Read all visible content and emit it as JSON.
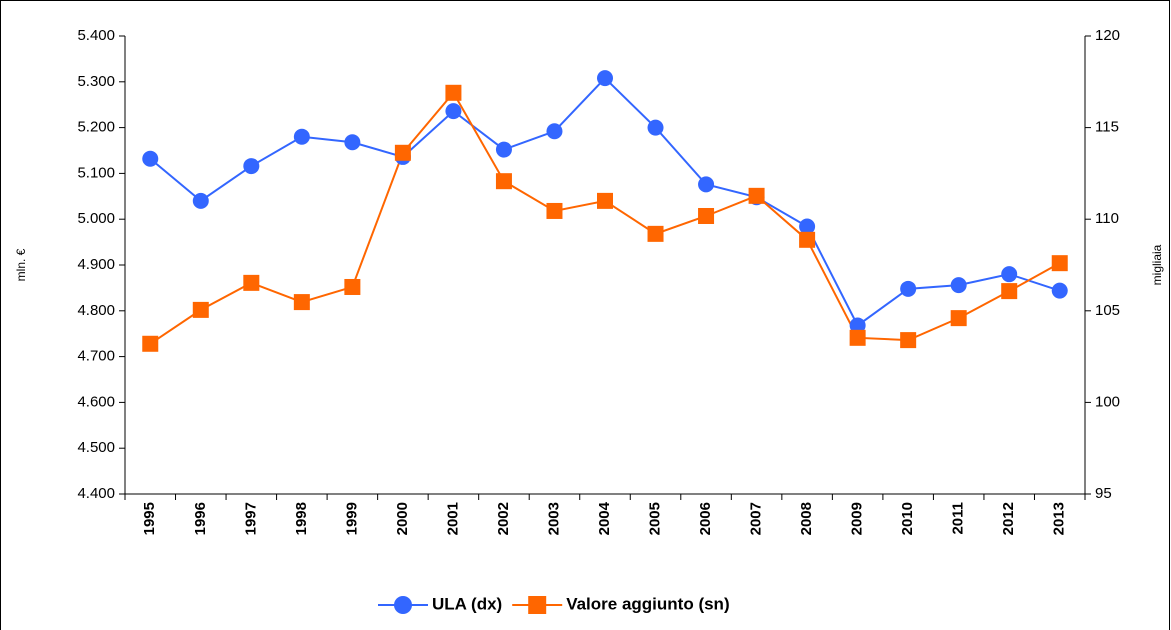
{
  "chart_data": {
    "type": "line",
    "categories": [
      "1995",
      "1996",
      "1997",
      "1998",
      "1999",
      "2000",
      "2001",
      "2002",
      "2003",
      "2004",
      "2005",
      "2006",
      "2007",
      "2008",
      "2009",
      "2010",
      "2011",
      "2012",
      "2013"
    ],
    "series": [
      {
        "name": "ULA (dx)",
        "color": "#3366ff",
        "axis": "y2",
        "marker": "circle",
        "values": [
          113.3,
          111.0,
          112.9,
          114.5,
          114.2,
          113.4,
          115.9,
          113.8,
          114.8,
          117.7,
          115.0,
          111.9,
          111.2,
          109.6,
          104.2,
          106.2,
          106.4,
          107.0,
          106.1
        ]
      },
      {
        "name": "Valore aggiunto (sn)",
        "color": "#ff6600",
        "axis": "y",
        "marker": "square",
        "values": [
          4728,
          4802,
          4861,
          4819,
          4852,
          5145,
          5276,
          5083,
          5018,
          5040,
          4968,
          5007,
          5051,
          4955,
          4741,
          4736,
          4784,
          4843,
          4904
        ]
      }
    ],
    "ylabel": "mln. €",
    "y2label": "migliaia",
    "ylim": [
      4400,
      5400
    ],
    "yticks": [
      {
        "value": 4400,
        "label": "4.400"
      },
      {
        "value": 4500,
        "label": "4.500"
      },
      {
        "value": 4600,
        "label": "4.600"
      },
      {
        "value": 4700,
        "label": "4.700"
      },
      {
        "value": 4800,
        "label": "4.800"
      },
      {
        "value": 4900,
        "label": "4.900"
      },
      {
        "value": 5000,
        "label": "5.000"
      },
      {
        "value": 5100,
        "label": "5.100"
      },
      {
        "value": 5200,
        "label": "5.200"
      },
      {
        "value": 5300,
        "label": "5.300"
      },
      {
        "value": 5400,
        "label": "5.400"
      }
    ],
    "y2lim": [
      95,
      120
    ],
    "y2ticks": [
      95,
      100,
      105,
      110,
      115,
      120
    ],
    "legend": "bottom",
    "grid": false
  }
}
